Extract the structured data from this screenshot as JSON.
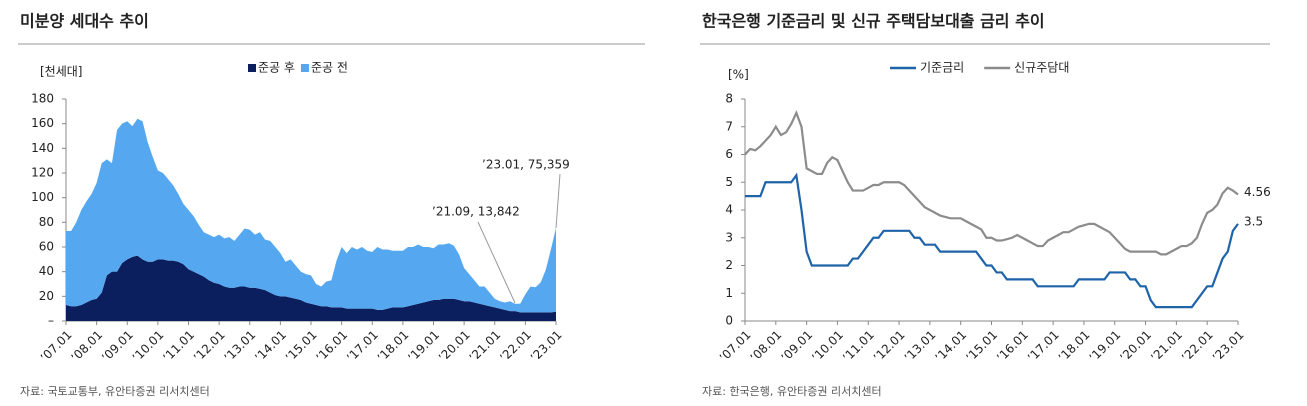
{
  "chart_data": [
    {
      "type": "stacked_area",
      "title": "미분양 세대수 추이",
      "y_label": "[천세대]",
      "categories": [
        "’07.01",
        null,
        null,
        null,
        null,
        null,
        "’08.01",
        null,
        null,
        null,
        null,
        null,
        "’09.01",
        null,
        null,
        null,
        null,
        null,
        "’10.01",
        null,
        null,
        null,
        null,
        null,
        "’11.01",
        null,
        null,
        null,
        null,
        null,
        "’12.01",
        null,
        null,
        null,
        null,
        null,
        "’13.01",
        null,
        null,
        null,
        null,
        null,
        "’14.01",
        null,
        null,
        null,
        null,
        null,
        "’15.01",
        null,
        null,
        null,
        null,
        null,
        "’16.01",
        null,
        null,
        null,
        null,
        null,
        "’17.01",
        null,
        null,
        null,
        null,
        null,
        "’18.01",
        null,
        null,
        null,
        null,
        null,
        "’19.01",
        null,
        null,
        null,
        null,
        null,
        "’20.01",
        null,
        null,
        null,
        null,
        null,
        "’21.01",
        null,
        null,
        null,
        null,
        null,
        "’22.01",
        null,
        null,
        null,
        null,
        null,
        "’23.01"
      ],
      "series": [
        {
          "name": "준공 후",
          "color": "#0b1f5e",
          "values": [
            13,
            12,
            12,
            13,
            15,
            17,
            18,
            23,
            37,
            40,
            40,
            47,
            50,
            52,
            53,
            50,
            48,
            48,
            50,
            50,
            49,
            49,
            48,
            46,
            42,
            40,
            38,
            36,
            33,
            31,
            30,
            28,
            27,
            27,
            28,
            28,
            27,
            27,
            26,
            25,
            23,
            21,
            20,
            20,
            19,
            18,
            17,
            15,
            14,
            13,
            12,
            12,
            11,
            11,
            11,
            10,
            10,
            10,
            10,
            10,
            10,
            9,
            9,
            10,
            11,
            11,
            11,
            12,
            13,
            14,
            15,
            16,
            17,
            17,
            18,
            18,
            18,
            17,
            16,
            16,
            15,
            14,
            13,
            12,
            11,
            10,
            9,
            8,
            8,
            7,
            7,
            7,
            7,
            7,
            7,
            7,
            7.5
          ]
        },
        {
          "name": "준공 전",
          "color": "#55a8f0",
          "values": [
            60,
            61,
            68,
            77,
            82,
            86,
            94,
            105,
            94,
            88,
            115,
            113,
            112,
            106,
            111,
            112,
            97,
            85,
            72,
            70,
            66,
            61,
            55,
            49,
            48,
            45,
            40,
            36,
            37,
            37,
            40,
            39,
            41,
            38,
            42,
            47,
            47,
            43,
            46,
            41,
            42,
            39,
            35,
            28,
            31,
            27,
            23,
            23,
            23,
            17,
            16,
            20,
            22,
            38,
            49,
            45,
            50,
            48,
            50,
            47,
            46,
            51,
            49,
            48,
            46,
            46,
            46,
            48,
            47,
            48,
            45,
            44,
            42,
            45,
            44,
            45,
            43,
            37,
            27,
            22,
            18,
            14,
            15,
            11,
            7,
            6,
            6,
            8,
            5.842,
            7.1,
            14.7,
            20.9,
            20.4,
            24.3,
            34.6,
            51,
            67.859
          ]
        }
      ],
      "ylim": [
        0,
        180
      ],
      "yticks": [
        {
          "value": 0,
          "label": "–"
        },
        20,
        40,
        60,
        80,
        100,
        120,
        140,
        160,
        180
      ],
      "annotations": [
        "’23.01, 75,359",
        "’21.09, 13,842"
      ],
      "source": "자료: 국토교통부, 유안타증권 리서치센터"
    },
    {
      "type": "line",
      "title": "한국은행 기준금리 및 신규 주택담보대출 금리 추이",
      "y_label": "[%]",
      "categories": [
        "’07.01",
        null,
        null,
        null,
        null,
        null,
        "’08.01",
        null,
        null,
        null,
        null,
        null,
        "’09.01",
        null,
        null,
        null,
        null,
        null,
        "’10.01",
        null,
        null,
        null,
        null,
        null,
        "’11.01",
        null,
        null,
        null,
        null,
        null,
        "’12.01",
        null,
        null,
        null,
        null,
        null,
        "’13.01",
        null,
        null,
        null,
        null,
        null,
        "’14.01",
        null,
        null,
        null,
        null,
        null,
        "’15.01",
        null,
        null,
        null,
        null,
        null,
        "’16.01",
        null,
        null,
        null,
        null,
        null,
        "’17.01",
        null,
        null,
        null,
        null,
        null,
        "’18.01",
        null,
        null,
        null,
        null,
        null,
        "’19.01",
        null,
        null,
        null,
        null,
        null,
        "’20.01",
        null,
        null,
        null,
        null,
        null,
        "’21.01",
        null,
        null,
        null,
        null,
        null,
        "’22.01",
        null,
        null,
        null,
        null,
        null,
        "’23.01"
      ],
      "series": [
        {
          "name": "기준금리",
          "color": "#1f64a8",
          "values": [
            4.5,
            4.5,
            4.5,
            4.5,
            5.0,
            5.0,
            5.0,
            5.0,
            5.0,
            5.0,
            5.25,
            4.0,
            2.5,
            2.0,
            2.0,
            2.0,
            2.0,
            2.0,
            2.0,
            2.0,
            2.0,
            2.25,
            2.25,
            2.5,
            2.75,
            3.0,
            3.0,
            3.25,
            3.25,
            3.25,
            3.25,
            3.25,
            3.25,
            3.0,
            3.0,
            2.75,
            2.75,
            2.75,
            2.5,
            2.5,
            2.5,
            2.5,
            2.5,
            2.5,
            2.5,
            2.5,
            2.25,
            2.0,
            2.0,
            1.75,
            1.75,
            1.5,
            1.5,
            1.5,
            1.5,
            1.5,
            1.5,
            1.25,
            1.25,
            1.25,
            1.25,
            1.25,
            1.25,
            1.25,
            1.25,
            1.5,
            1.5,
            1.5,
            1.5,
            1.5,
            1.5,
            1.75,
            1.75,
            1.75,
            1.75,
            1.5,
            1.5,
            1.25,
            1.25,
            0.75,
            0.5,
            0.5,
            0.5,
            0.5,
            0.5,
            0.5,
            0.5,
            0.5,
            0.75,
            1.0,
            1.25,
            1.25,
            1.75,
            2.25,
            2.5,
            3.25,
            3.5
          ]
        },
        {
          "name": "신규주담대",
          "color": "#8c8c8c",
          "values": [
            6.0,
            6.2,
            6.15,
            6.3,
            6.5,
            6.7,
            7.0,
            6.7,
            6.8,
            7.1,
            7.5,
            7.0,
            5.5,
            5.4,
            5.3,
            5.3,
            5.7,
            5.9,
            5.8,
            5.4,
            5.0,
            4.7,
            4.7,
            4.7,
            4.8,
            4.9,
            4.9,
            5.0,
            5.0,
            5.0,
            5.0,
            4.9,
            4.7,
            4.5,
            4.3,
            4.1,
            4.0,
            3.9,
            3.8,
            3.75,
            3.7,
            3.7,
            3.7,
            3.6,
            3.5,
            3.4,
            3.3,
            3.0,
            3.0,
            2.9,
            2.9,
            2.95,
            3.0,
            3.1,
            3.0,
            2.9,
            2.8,
            2.7,
            2.7,
            2.9,
            3.0,
            3.1,
            3.2,
            3.2,
            3.3,
            3.4,
            3.45,
            3.5,
            3.5,
            3.4,
            3.3,
            3.2,
            3.0,
            2.8,
            2.6,
            2.5,
            2.5,
            2.5,
            2.5,
            2.5,
            2.5,
            2.4,
            2.4,
            2.5,
            2.6,
            2.7,
            2.7,
            2.8,
            3.0,
            3.5,
            3.9,
            4.0,
            4.2,
            4.6,
            4.8,
            4.7,
            4.56
          ]
        }
      ],
      "ylim": [
        0,
        8
      ],
      "yticks": [
        0,
        1,
        2,
        3,
        4,
        5,
        6,
        7,
        8
      ],
      "source": "자료: 한국은행, 유안타증권 리서치센터"
    }
  ]
}
